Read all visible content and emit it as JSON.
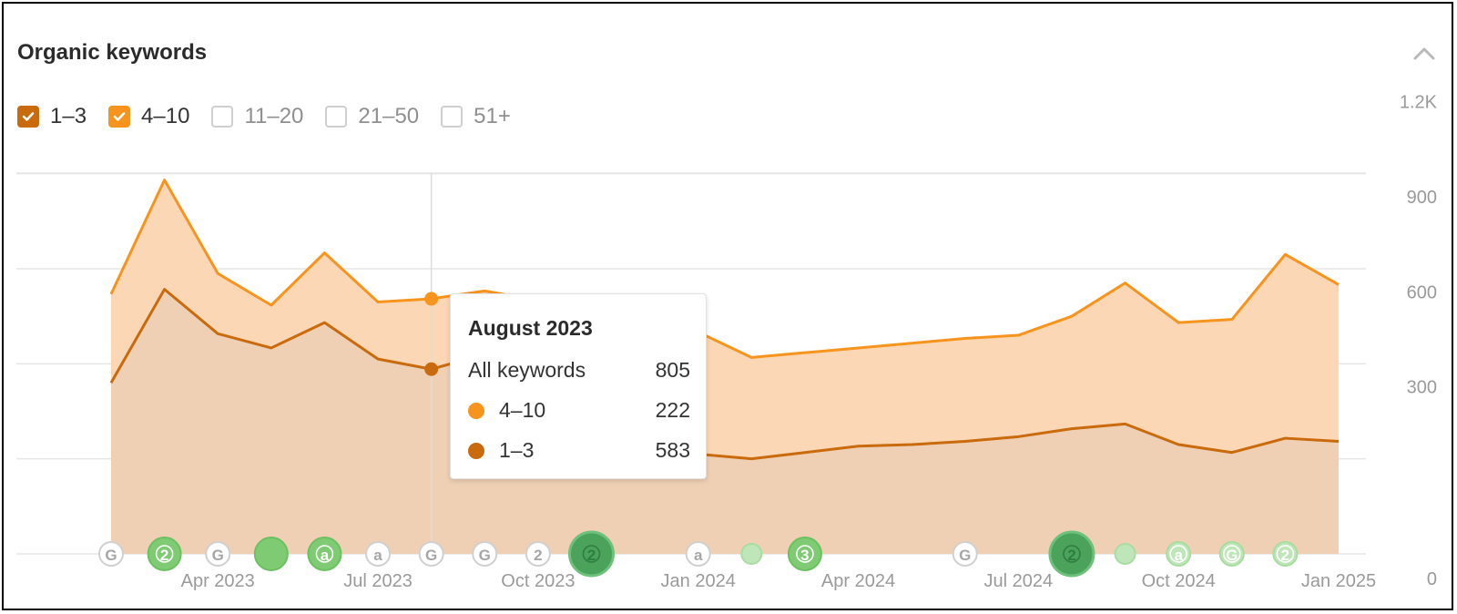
{
  "header": {
    "title": "Organic keywords",
    "collapse_icon": "chevron-up-icon"
  },
  "legend": [
    {
      "label": "1–3",
      "checked": true,
      "color": "#c96a0c"
    },
    {
      "label": "4–10",
      "checked": true,
      "color": "#f7941d"
    },
    {
      "label": "11–20",
      "checked": false,
      "color": "#cfcfcf"
    },
    {
      "label": "21–50",
      "checked": false,
      "color": "#cfcfcf"
    },
    {
      "label": "51+",
      "checked": false,
      "color": "#cfcfcf"
    }
  ],
  "tooltip": {
    "title": "August 2023",
    "rows": [
      {
        "label": "All keywords",
        "value": "805"
      },
      {
        "label": "4–10",
        "value": "222",
        "color": "#f7941d"
      },
      {
        "label": "1–3",
        "value": "583",
        "color": "#c96a0c"
      }
    ]
  },
  "chart_data": {
    "type": "area",
    "stacked": true,
    "x": [
      "2023-02",
      "2023-03",
      "2023-04",
      "2023-05",
      "2023-06",
      "2023-07",
      "2023-08",
      "2023-09",
      "2023-10",
      "2023-11",
      "2023-12",
      "2024-01",
      "2024-02",
      "2024-03",
      "2024-04",
      "2024-05",
      "2024-06",
      "2024-07",
      "2024-08",
      "2024-09",
      "2024-10",
      "2024-11",
      "2024-12",
      "2025-01"
    ],
    "x_tick_labels": [
      "Apr 2023",
      "Jul 2023",
      "Oct 2023",
      "Jan 2024",
      "Apr 2024",
      "Jul 2024",
      "Oct 2024",
      "Jan 2025"
    ],
    "x_tick_positions": [
      "2023-04",
      "2023-07",
      "2023-10",
      "2024-01",
      "2024-04",
      "2024-07",
      "2024-10",
      "2025-01"
    ],
    "y_ticks": [
      0,
      300,
      600,
      900,
      "1.2K"
    ],
    "ylim": [
      0,
      1200
    ],
    "y_axis_position": "right",
    "grid": true,
    "series": [
      {
        "name": "1–3",
        "color": "#c96a0c",
        "fill": "#efd0b5",
        "values": [
          540,
          835,
          695,
          650,
          730,
          615,
          583,
          630,
          595,
          610,
          625,
          315,
          300,
          320,
          340,
          345,
          355,
          370,
          395,
          410,
          345,
          320,
          365,
          355
        ]
      },
      {
        "name": "4–10",
        "color": "#f7941d",
        "fill": "#fcd7b5",
        "values": [
          280,
          345,
          190,
          135,
          220,
          180,
          222,
          200,
          205,
          190,
          160,
          385,
          320,
          315,
          310,
          320,
          325,
          320,
          355,
          445,
          385,
          420,
          580,
          495
        ]
      }
    ],
    "hover": {
      "x": "2023-08"
    },
    "annotations": [
      {
        "x": "2023-02",
        "label": "G",
        "style": "white",
        "size": 26
      },
      {
        "x": "2023-03",
        "label": "2",
        "style": "green",
        "size": 36
      },
      {
        "x": "2023-04",
        "label": "G",
        "style": "white",
        "size": 26
      },
      {
        "x": "2023-05",
        "label": "",
        "style": "green",
        "size": 36
      },
      {
        "x": "2023-06",
        "label": "a",
        "style": "green",
        "size": 36
      },
      {
        "x": "2023-07",
        "label": "a",
        "style": "white",
        "size": 26
      },
      {
        "x": "2023-08",
        "label": "G",
        "style": "white",
        "size": 26
      },
      {
        "x": "2023-09",
        "label": "G",
        "style": "white",
        "size": 26
      },
      {
        "x": "2023-10",
        "label": "2",
        "style": "white",
        "size": 26
      },
      {
        "x": "2023-11",
        "label": "2",
        "style": "dark",
        "size": 48
      },
      {
        "x": "2024-01",
        "label": "a",
        "style": "white",
        "size": 26
      },
      {
        "x": "2024-02",
        "label": "",
        "style": "light",
        "size": 22
      },
      {
        "x": "2024-03",
        "label": "3",
        "style": "green",
        "size": 36
      },
      {
        "x": "2024-06",
        "label": "G",
        "style": "white",
        "size": 26
      },
      {
        "x": "2024-08",
        "label": "2",
        "style": "dark",
        "size": 48
      },
      {
        "x": "2024-09",
        "label": "",
        "style": "light",
        "size": 22
      },
      {
        "x": "2024-10",
        "label": "a",
        "style": "light",
        "size": 26
      },
      {
        "x": "2024-11",
        "label": "G",
        "style": "light",
        "size": 26
      },
      {
        "x": "2024-12",
        "label": "2",
        "style": "light",
        "size": 26
      }
    ]
  }
}
